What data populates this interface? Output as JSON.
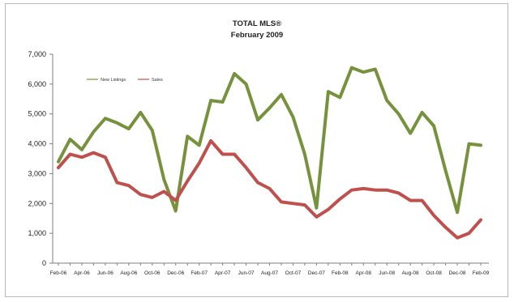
{
  "chart_data": {
    "type": "line",
    "title": "TOTAL MLS®",
    "subtitle": "February 2009",
    "xlabel": "",
    "ylabel": "",
    "ylim": [
      0,
      7000
    ],
    "yticks": [
      "0",
      "1,000",
      "2,000",
      "3,000",
      "4,000",
      "5,000",
      "6,000",
      "7,000"
    ],
    "ytick_values": [
      0,
      1000,
      2000,
      3000,
      4000,
      5000,
      6000,
      7000
    ],
    "grid": false,
    "legend_position": "top-left",
    "categories": [
      "Feb-06",
      "Mar-06",
      "Apr-06",
      "May-06",
      "Jun-06",
      "Jul-06",
      "Aug-06",
      "Sep-06",
      "Oct-06",
      "Nov-06",
      "Dec-06",
      "Jan-07",
      "Feb-07",
      "Mar-07",
      "Apr-07",
      "May-07",
      "Jun-07",
      "Jul-07",
      "Aug-07",
      "Sep-07",
      "Oct-07",
      "Nov-07",
      "Dec-07",
      "Jan-08",
      "Feb-08",
      "Mar-08",
      "Apr-08",
      "May-08",
      "Jun-08",
      "Jul-08",
      "Aug-08",
      "Sep-08",
      "Oct-08",
      "Nov-08",
      "Dec-08",
      "Jan-09",
      "Feb-09"
    ],
    "tick_labels": [
      "Feb-06",
      "Apr-06",
      "Jun-06",
      "Aug-06",
      "Oct-06",
      "Dec-06",
      "Feb-07",
      "Apr-07",
      "Jun-07",
      "Aug-07",
      "Oct-07",
      "Dec-07",
      "Feb-08",
      "Apr-08",
      "Jun-08",
      "Aug-08",
      "Oct-08",
      "Dec-08",
      "Feb-09"
    ],
    "tick_indices": [
      0,
      2,
      4,
      6,
      8,
      10,
      12,
      14,
      16,
      18,
      20,
      22,
      24,
      26,
      28,
      30,
      32,
      34,
      36
    ],
    "series": [
      {
        "name": "New Listings",
        "color": "#76923c",
        "values": [
          3400,
          4150,
          3800,
          4400,
          4850,
          4700,
          4500,
          5050,
          4450,
          2800,
          1750,
          4250,
          3950,
          5450,
          5400,
          6350,
          6000,
          4800,
          5200,
          5650,
          4900,
          3650,
          1850,
          5750,
          5550,
          6550,
          6400,
          6500,
          5450,
          5000,
          4350,
          5050,
          4600,
          3100,
          1700,
          4000,
          3950
        ]
      },
      {
        "name": "Sales",
        "color": "#c0504d",
        "values": [
          3200,
          3650,
          3550,
          3700,
          3550,
          2700,
          2600,
          2300,
          2200,
          2400,
          2100,
          2750,
          3350,
          4100,
          3650,
          3650,
          3200,
          2700,
          2500,
          2050,
          2000,
          1950,
          1550,
          1800,
          2150,
          2450,
          2500,
          2450,
          2450,
          2350,
          2100,
          2100,
          1600,
          1200,
          850,
          1000,
          1450
        ]
      }
    ]
  }
}
